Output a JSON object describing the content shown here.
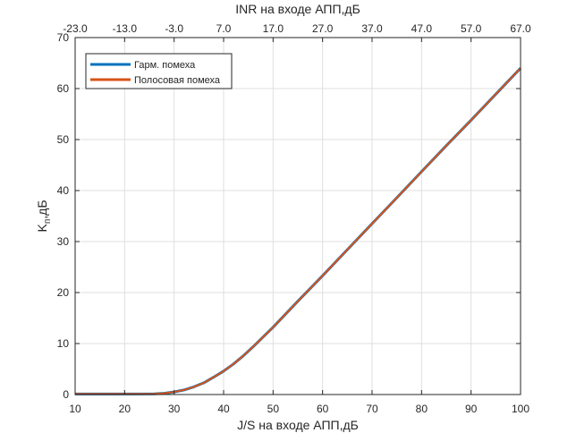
{
  "chart_data": {
    "type": "line",
    "xlabel": "J/S на входе АПП,дБ",
    "ylabel_main": "K",
    "ylabel_sub": "п",
    "ylabel_tail": ",дБ",
    "top_xlabel": "INR на входе АПП,дБ",
    "xlim": [
      10,
      100
    ],
    "ylim": [
      0,
      70
    ],
    "x_ticks": [
      10,
      20,
      30,
      40,
      50,
      60,
      70,
      80,
      90,
      100
    ],
    "y_ticks": [
      0,
      10,
      20,
      30,
      40,
      50,
      60,
      70
    ],
    "top_ticks": [
      "-23.0",
      "-13.0",
      "-3.0",
      "7.0",
      "17.0",
      "27.0",
      "37.0",
      "47.0",
      "57.0",
      "67.0"
    ],
    "grid": true,
    "legend_position": "top-left",
    "series": [
      {
        "name": "Гарм. помеха",
        "color": "#0072BD",
        "x": [
          10,
          20,
          26,
          28,
          30,
          32,
          34,
          36,
          38,
          40,
          42,
          44,
          46,
          48,
          50,
          55,
          60,
          65,
          70,
          75,
          80,
          85,
          90,
          95,
          100
        ],
        "y": [
          0.1,
          0.1,
          0.12,
          0.25,
          0.5,
          0.9,
          1.5,
          2.3,
          3.4,
          4.6,
          6.0,
          7.6,
          9.4,
          11.3,
          13.2,
          18.3,
          23.3,
          28.4,
          33.5,
          38.6,
          43.7,
          48.8,
          53.8,
          58.9,
          64.0
        ]
      },
      {
        "name": "Полосовая помеха",
        "color": "#D95319",
        "x": [
          10,
          20,
          26,
          28,
          30,
          32,
          34,
          36,
          38,
          40,
          42,
          44,
          46,
          48,
          50,
          55,
          60,
          65,
          70,
          75,
          80,
          85,
          90,
          95,
          100
        ],
        "y": [
          0.1,
          0.1,
          0.12,
          0.25,
          0.5,
          0.9,
          1.5,
          2.3,
          3.4,
          4.6,
          6.0,
          7.6,
          9.4,
          11.3,
          13.2,
          18.3,
          23.3,
          28.4,
          33.5,
          38.6,
          43.7,
          48.8,
          53.8,
          58.9,
          64.0
        ]
      }
    ]
  }
}
